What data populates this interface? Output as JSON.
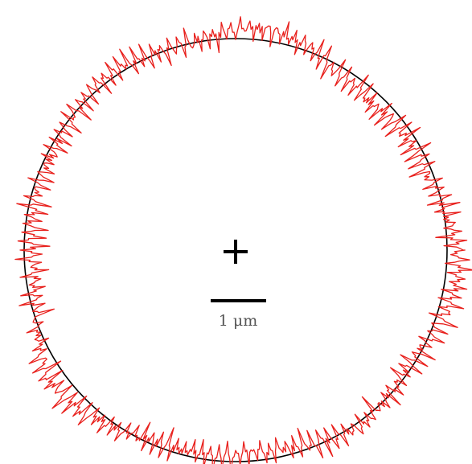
{
  "scale_bar": {
    "label": "1 μm"
  },
  "colors": {
    "reference_circle": "#000000",
    "fluctuating_contour": "#e8201c",
    "center_marker": "#000000",
    "scale_bar": "#000000",
    "label": "#555555"
  },
  "icons": {
    "center_marker": "plus-icon"
  }
}
